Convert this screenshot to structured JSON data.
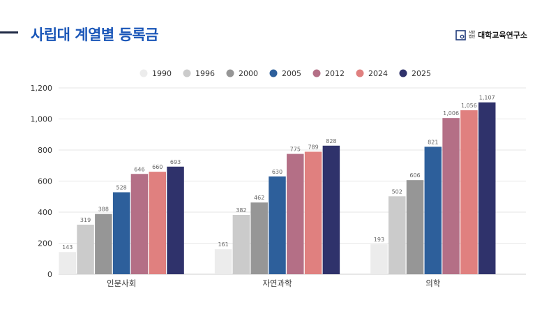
{
  "page": {
    "title": "사립대 계열별 등록금"
  },
  "logo": {
    "small_line1": "사단",
    "small_line2": "법인",
    "name": "대학교육연구소"
  },
  "colors": {
    "title": "#1a56b8",
    "series": [
      "#ececec",
      "#cbcbcb",
      "#969696",
      "#2d5f9b",
      "#b46f86",
      "#e0807f",
      "#2f326b"
    ],
    "grid": "#e6e6e6",
    "axis_text": "#333333",
    "label_text": "#666666"
  },
  "chart_data": {
    "type": "bar",
    "title": "사립대 계열별 등록금",
    "xlabel": "",
    "ylabel": "",
    "ylim": [
      0,
      1200
    ],
    "yticks": [
      0,
      200,
      400,
      600,
      800,
      1000,
      1200
    ],
    "ytick_labels": [
      "0",
      "200",
      "400",
      "600",
      "800",
      "1,000",
      "1,200"
    ],
    "grid": true,
    "legend_position": "top-center",
    "categories": [
      "인문사회",
      "자연과학",
      "의학"
    ],
    "series": [
      {
        "name": "1990",
        "values": [
          143,
          161,
          193
        ],
        "labels": [
          "143",
          "161",
          "193"
        ]
      },
      {
        "name": "1996",
        "values": [
          319,
          382,
          502
        ],
        "labels": [
          "319",
          "382",
          "502"
        ]
      },
      {
        "name": "2000",
        "values": [
          388,
          462,
          606
        ],
        "labels": [
          "388",
          "462",
          "606"
        ]
      },
      {
        "name": "2005",
        "values": [
          528,
          630,
          821
        ],
        "labels": [
          "528",
          "630",
          "821"
        ]
      },
      {
        "name": "2012",
        "values": [
          646,
          775,
          1006
        ],
        "labels": [
          "646",
          "775",
          "1,006"
        ]
      },
      {
        "name": "2024",
        "values": [
          660,
          789,
          1056
        ],
        "labels": [
          "660",
          "789",
          "1,056"
        ]
      },
      {
        "name": "2025",
        "values": [
          693,
          828,
          1107
        ],
        "labels": [
          "693",
          "828",
          "1,107"
        ]
      }
    ]
  }
}
